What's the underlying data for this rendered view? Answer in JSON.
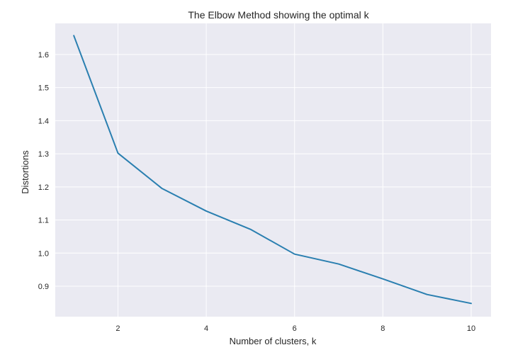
{
  "chart_data": {
    "type": "line",
    "title": "The Elbow Method showing the optimal k",
    "xlabel": "Number of clusters, k",
    "ylabel": "Distortions",
    "x": [
      1,
      2,
      3,
      4,
      5,
      6,
      7,
      8,
      9,
      10
    ],
    "series": [
      {
        "values": [
          1.657,
          1.302,
          1.195,
          1.127,
          1.072,
          0.997,
          0.967,
          0.922,
          0.875,
          0.848
        ],
        "color": "#2a7fb0"
      }
    ],
    "xlim": [
      0.58,
      10.45
    ],
    "ylim": [
      0.808,
      1.694
    ],
    "xticks": [
      2,
      4,
      6,
      8,
      10
    ],
    "xtick_labels": [
      "2",
      "4",
      "6",
      "8",
      "10"
    ],
    "yticks": [
      0.9,
      1.0,
      1.1,
      1.2,
      1.3,
      1.4,
      1.5,
      1.6
    ],
    "ytick_labels": [
      "0.9",
      "1.0",
      "1.1",
      "1.2",
      "1.3",
      "1.4",
      "1.5",
      "1.6"
    ],
    "grid": true,
    "background_color": "#eaeaf2",
    "grid_color": "#ffffff"
  }
}
